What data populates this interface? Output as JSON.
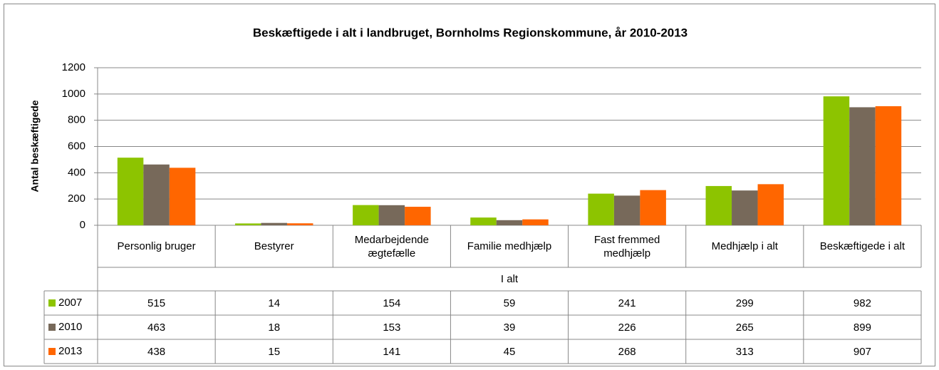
{
  "chart_data": {
    "type": "bar",
    "title": "Beskæftigede i alt i landbruget, Bornholms Regionskommune, år 2010-2013",
    "y_label": "Antal beskæftigede",
    "category_group": "I alt",
    "categories": [
      "Personlig bruger",
      "Bestyrer",
      "Medarbejdende ægtefælle",
      "Familie medhjælp",
      "Fast fremmed medhjælp",
      "Medhjælp i alt",
      "Beskæftigede i alt"
    ],
    "series": [
      {
        "name": "2007",
        "color": "#8dc400",
        "values": [
          515,
          14,
          154,
          59,
          241,
          299,
          982
        ]
      },
      {
        "name": "2010",
        "color": "#77695a",
        "values": [
          463,
          18,
          153,
          39,
          226,
          265,
          899
        ]
      },
      {
        "name": "2013",
        "color": "#ff6600",
        "values": [
          438,
          15,
          141,
          45,
          268,
          313,
          907
        ]
      }
    ],
    "ylim": [
      0,
      1200
    ],
    "yticks": [
      0,
      200,
      400,
      600,
      800,
      1000,
      1200
    ],
    "grid": true
  }
}
